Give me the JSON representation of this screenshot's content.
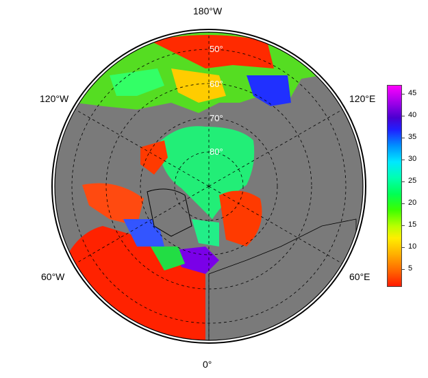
{
  "longitude_labels": {
    "top": "180°W",
    "upper_left": "120°W",
    "upper_right": "120°E",
    "lower_left": "60°W",
    "lower_right": "60°E",
    "bottom": "0°"
  },
  "latitude_labels": [
    "50°",
    "60°",
    "70°",
    "80°"
  ],
  "colorbar": {
    "ticks": [
      "5",
      "10",
      "15",
      "20",
      "25",
      "30",
      "35",
      "40",
      "45"
    ],
    "min": 1,
    "max": 47,
    "colors": [
      "#ff1a00",
      "#ff6a00",
      "#ffb000",
      "#ffee00",
      "#b8ff00",
      "#3cff00",
      "#00ff55",
      "#00ffb0",
      "#00e8ff",
      "#0090ff",
      "#2020ff",
      "#4a00d0",
      "#9a00e8",
      "#ff00ff"
    ]
  },
  "colors": {
    "land": "#7a7a7a",
    "ocean_fill": "#808080",
    "coast": "#000000",
    "arctic_ice_value": "#22ee77"
  }
}
